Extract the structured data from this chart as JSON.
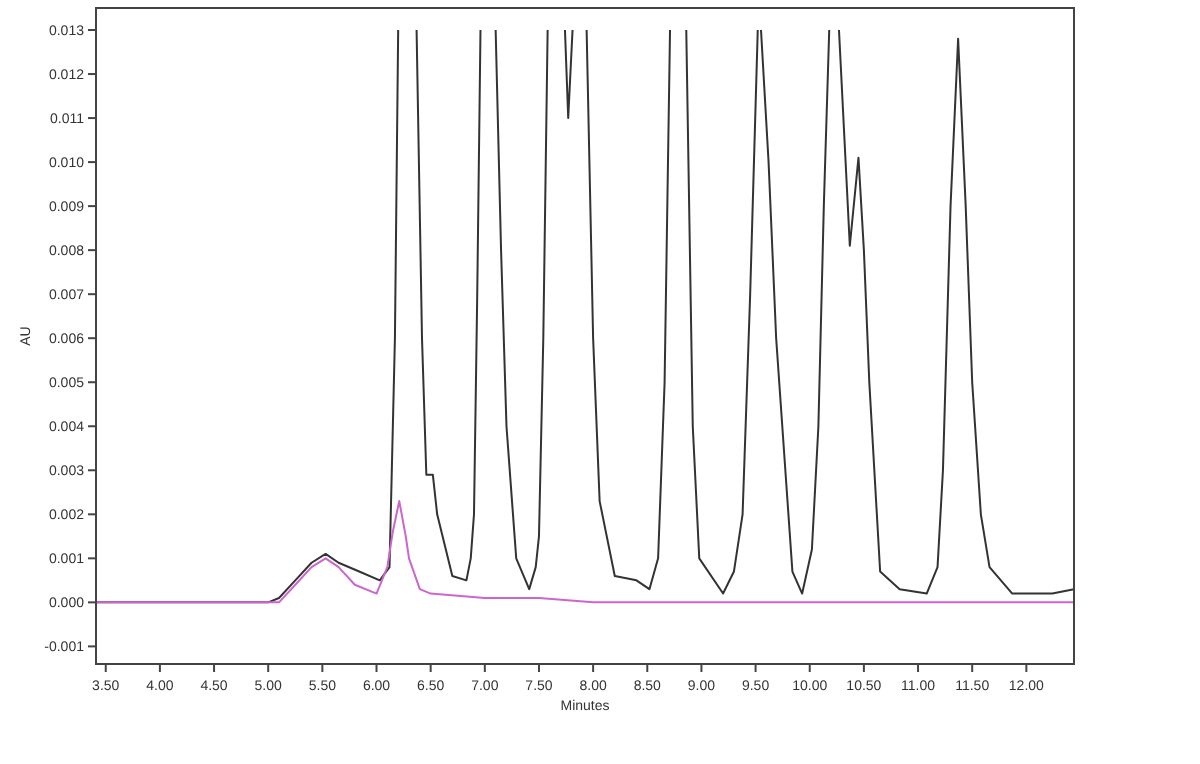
{
  "chart_data": {
    "type": "line",
    "xlabel": "Minutes",
    "ylabel": "AU",
    "xlim": [
      3.41,
      12.44
    ],
    "ylim": [
      -0.0014,
      0.0135
    ],
    "xticks": [
      {
        "value": 3.5,
        "label": "3.50"
      },
      {
        "value": 4,
        "label": "4.00"
      },
      {
        "value": 4.5,
        "label": "4.50"
      },
      {
        "value": 5,
        "label": "5.00"
      },
      {
        "value": 5.5,
        "label": "5.50"
      },
      {
        "value": 6,
        "label": "6.00"
      },
      {
        "value": 6.5,
        "label": "6.50"
      },
      {
        "value": 7,
        "label": "7.00"
      },
      {
        "value": 7.5,
        "label": "7.50"
      },
      {
        "value": 8,
        "label": "8.00"
      },
      {
        "value": 8.5,
        "label": "8.50"
      },
      {
        "value": 9,
        "label": "9.00"
      },
      {
        "value": 9.5,
        "label": "9.50"
      },
      {
        "value": 10,
        "label": "10.00"
      },
      {
        "value": 10.5,
        "label": "10.50"
      },
      {
        "value": 11,
        "label": "11.00"
      },
      {
        "value": 11.5,
        "label": "11.50"
      },
      {
        "value": 12,
        "label": "12.00"
      }
    ],
    "yticks": [
      {
        "value": -0.001,
        "label": "-0.001"
      },
      {
        "value": 0,
        "label": "0.000"
      },
      {
        "value": 0.001,
        "label": "0.001"
      },
      {
        "value": 0.002,
        "label": "0.002"
      },
      {
        "value": 0.003,
        "label": "0.003"
      },
      {
        "value": 0.004,
        "label": "0.004"
      },
      {
        "value": 0.005,
        "label": "0.005"
      },
      {
        "value": 0.006,
        "label": "0.006"
      },
      {
        "value": 0.007,
        "label": "0.007"
      },
      {
        "value": 0.008,
        "label": "0.008"
      },
      {
        "value": 0.009,
        "label": "0.009"
      },
      {
        "value": 0.01,
        "label": "0.010"
      },
      {
        "value": 0.011,
        "label": "0.011"
      },
      {
        "value": 0.012,
        "label": "0.012"
      },
      {
        "value": 0.013,
        "label": "0.013"
      }
    ],
    "grid": false,
    "marker": "none",
    "line_style": "solid",
    "series": [
      {
        "color": "#333333",
        "x": [
          3.41,
          3.8,
          4.2,
          4.6,
          5.0,
          5.1,
          5.25,
          5.4,
          5.53,
          5.65,
          5.84,
          6.03,
          6.12,
          6.17,
          6.2,
          6.28,
          6.37,
          6.42,
          6.46,
          6.52,
          6.56,
          6.61,
          6.7,
          6.83,
          6.87,
          6.9,
          6.93,
          6.96,
          7.03,
          7.1,
          7.15,
          7.2,
          7.29,
          7.41,
          7.47,
          7.5,
          7.54,
          7.58,
          7.66,
          7.74,
          7.77,
          7.81,
          7.87,
          7.94,
          8.0,
          8.06,
          8.2,
          8.4,
          8.52,
          8.6,
          8.66,
          8.71,
          8.78,
          8.86,
          8.92,
          8.98,
          9.2,
          9.3,
          9.38,
          9.45,
          9.52,
          9.535,
          9.55,
          9.62,
          9.69,
          9.84,
          9.93,
          10.02,
          10.08,
          10.13,
          10.18,
          10.22,
          10.27,
          10.37,
          10.45,
          10.5,
          10.55,
          10.65,
          10.83,
          11.08,
          11.18,
          11.23,
          11.3,
          11.37,
          11.44,
          11.5,
          11.58,
          11.66,
          11.87,
          12.24,
          12.44
        ],
        "values": [
          0,
          0,
          0,
          0,
          0,
          0.0001,
          0.0005,
          0.0009,
          0.0011,
          0.0009,
          0.0007,
          0.0005,
          0.0008,
          0.006,
          0.013,
          null,
          0.013,
          0.006,
          0.0029,
          0.0029,
          0.002,
          0.0015,
          0.0006,
          0.0005,
          0.001,
          0.002,
          0.007,
          0.013,
          null,
          0.013,
          0.008,
          0.004,
          0.001,
          0.0003,
          0.0008,
          0.0015,
          0.006,
          0.013,
          null,
          0.013,
          0.011,
          0.013,
          null,
          0.013,
          0.006,
          0.0023,
          0.0006,
          0.0005,
          0.0003,
          0.001,
          0.005,
          0.013,
          null,
          0.013,
          0.004,
          0.001,
          0.0002,
          0.0007,
          0.002,
          0.007,
          0.013,
          null,
          0.013,
          0.01,
          0.006,
          0.0007,
          0.0002,
          0.0012,
          0.004,
          0.009,
          0.013,
          null,
          0.013,
          0.0081,
          0.0101,
          0.008,
          0.005,
          0.0007,
          0.0003,
          0.0002,
          0.0008,
          0.003,
          0.009,
          0.0128,
          0.009,
          0.005,
          0.002,
          0.0008,
          0.0002,
          0.0002,
          0.0003
        ]
      },
      {
        "color": "#cc66cc",
        "x": [
          3.41,
          5.1,
          5.25,
          5.4,
          5.53,
          5.65,
          5.8,
          6.0,
          6.1,
          6.15,
          6.21,
          6.27,
          6.3,
          6.4,
          6.5,
          7.0,
          7.5,
          8.0,
          12.44
        ],
        "values": [
          0,
          0,
          0.0004,
          0.0008,
          0.001,
          0.0008,
          0.0004,
          0.0002,
          0.0008,
          0.0016,
          0.0023,
          0.0015,
          0.001,
          0.0003,
          0.0002,
          0.0001,
          0.0001,
          0,
          0
        ]
      }
    ]
  }
}
